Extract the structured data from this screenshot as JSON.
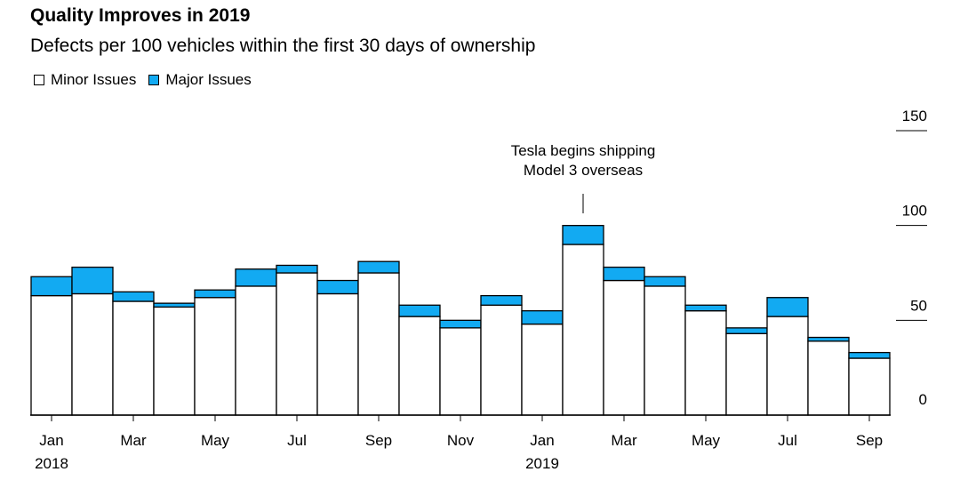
{
  "colors": {
    "minor": "#ffffff",
    "major": "#12aaf2",
    "outline": "#000000"
  },
  "chart_data": {
    "type": "bar",
    "stacked": true,
    "title": "Quality Improves in 2019",
    "subtitle": "Defects per 100 vehicles within the first 30 days of ownership",
    "legend": [
      "Minor Issues",
      "Major Issues"
    ],
    "legend_position": "top-left",
    "categories": [
      "Jan 2018",
      "Feb 2018",
      "Mar 2018",
      "Apr 2018",
      "May 2018",
      "Jun 2018",
      "Jul 2018",
      "Aug 2018",
      "Sep 2018",
      "Oct 2018",
      "Nov 2018",
      "Dec 2018",
      "Jan 2019",
      "Feb 2019",
      "Mar 2019",
      "Apr 2019",
      "May 2019",
      "Jun 2019",
      "Jul 2019",
      "Aug 2019",
      "Sep 2019"
    ],
    "series": [
      {
        "name": "Minor Issues",
        "values": [
          63,
          64,
          60,
          57,
          62,
          68,
          75,
          64,
          75,
          52,
          46,
          58,
          48,
          90,
          71,
          68,
          55,
          43,
          52,
          39,
          30
        ]
      },
      {
        "name": "Major Issues",
        "values": [
          10,
          14,
          5,
          2,
          4,
          9,
          4,
          7,
          6,
          6,
          4,
          5,
          7,
          10,
          7,
          5,
          3,
          3,
          10,
          2,
          3
        ]
      }
    ],
    "x_tick_labels": [
      "Jan",
      "Mar",
      "May",
      "Jul",
      "Sep",
      "Nov",
      "Jan",
      "Mar",
      "May",
      "Jul",
      "Sep"
    ],
    "x_year_labels": [
      "2018",
      "2019"
    ],
    "y_ticks": [
      "150",
      "100",
      "50",
      "0"
    ],
    "ylim": [
      0,
      150
    ],
    "y_axis_side": "right",
    "annotation": {
      "line1": "Tesla begins shipping",
      "line2": "Model 3 overseas",
      "category": "Feb 2019"
    }
  }
}
